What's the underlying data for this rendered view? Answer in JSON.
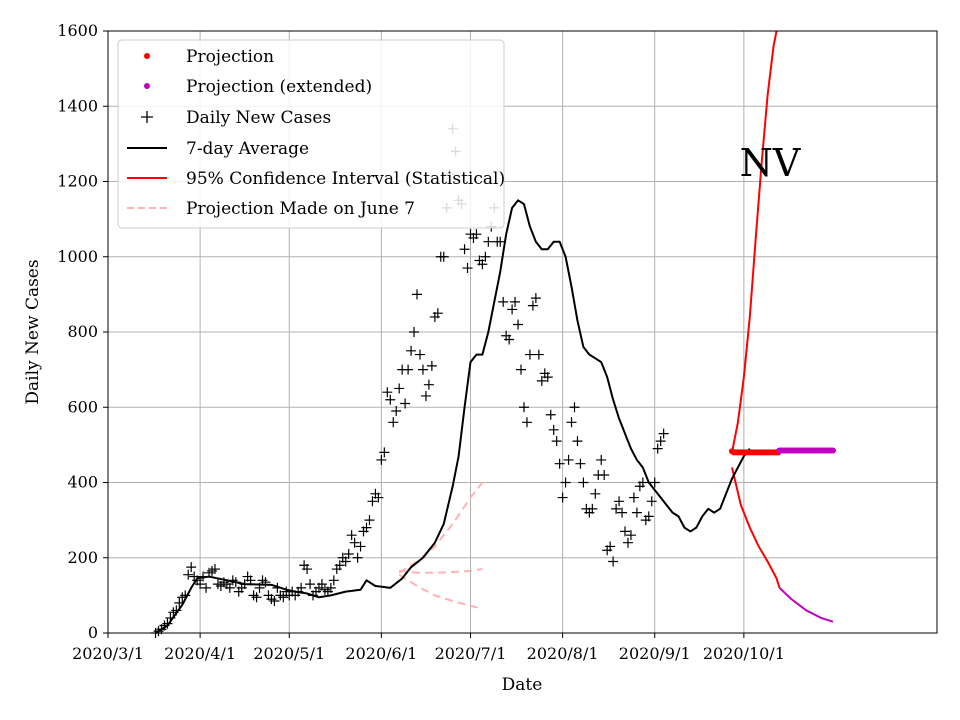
{
  "chart_data": {
    "type": "line",
    "title": "",
    "annotation": "NV",
    "xlabel": "Date",
    "ylabel": "Daily New Cases",
    "x_range_days": [
      0,
      279
    ],
    "ylim": [
      0,
      1600
    ],
    "grid": true,
    "legend_position": "top-left",
    "x_ticks": [
      {
        "day": 0,
        "label": "2020/3/1"
      },
      {
        "day": 31,
        "label": "2020/4/1"
      },
      {
        "day": 61,
        "label": "2020/5/1"
      },
      {
        "day": 92,
        "label": "2020/6/1"
      },
      {
        "day": 122,
        "label": "2020/7/1"
      },
      {
        "day": 153,
        "label": "2020/8/1"
      },
      {
        "day": 184,
        "label": "2020/9/1"
      },
      {
        "day": 214,
        "label": "2020/10/1"
      }
    ],
    "y_ticks": [
      {
        "value": 0,
        "label": "0"
      },
      {
        "value": 200,
        "label": "200"
      },
      {
        "value": 400,
        "label": "400"
      },
      {
        "value": 600,
        "label": "600"
      },
      {
        "value": 800,
        "label": "800"
      },
      {
        "value": 1000,
        "label": "1000"
      },
      {
        "value": 1200,
        "label": "1200"
      },
      {
        "value": 1400,
        "label": "1400"
      },
      {
        "value": 1600,
        "label": "1600"
      }
    ],
    "legend": [
      {
        "label": "Projection",
        "marker": "dot",
        "color": "#ff0000"
      },
      {
        "label": "Projection (extended)",
        "marker": "dot",
        "color": "#bf00bf"
      },
      {
        "label": "Daily New Cases",
        "marker": "plus",
        "color": "#000000"
      },
      {
        "label": "7-day Average",
        "marker": "line",
        "color": "#000000"
      },
      {
        "label": "95% Confidence Interval (Statistical)",
        "marker": "line",
        "color": "#ff0000"
      },
      {
        "label": "Projection Made on June 7",
        "marker": "dashed",
        "color": "#ffb3b3"
      }
    ],
    "daily_new_cases": {
      "start_day": 16,
      "values": [
        0,
        5,
        10,
        20,
        25,
        40,
        55,
        60,
        80,
        95,
        100,
        155,
        175,
        150,
        140,
        130,
        150,
        120,
        160,
        165,
        170,
        130,
        125,
        135,
        130,
        120,
        140,
        135,
        110,
        120,
        130,
        150,
        140,
        100,
        95,
        120,
        140,
        135,
        100,
        90,
        85,
        120,
        100,
        95,
        110,
        100,
        110,
        100,
        110,
        120,
        180,
        170,
        130,
        100,
        110,
        120,
        130,
        115,
        110,
        120,
        140,
        170,
        180,
        200,
        190,
        210,
        260,
        240,
        200,
        230,
        270,
        280,
        300,
        350,
        370,
        360,
        460,
        480,
        640,
        620,
        560,
        590,
        650,
        700,
        610,
        700,
        750,
        800,
        900,
        740,
        700,
        630,
        660,
        710,
        840,
        850,
        1000,
        1000,
        1130,
        1220,
        1340,
        1280,
        1150,
        1140,
        1020,
        970,
        1060,
        1050,
        1060,
        990,
        980,
        1000,
        1040,
        1080,
        1130,
        1040,
        1040,
        880,
        790,
        780,
        860,
        880,
        820,
        700,
        600,
        560,
        740,
        870,
        890,
        740,
        670,
        690,
        680,
        580,
        540,
        510,
        450,
        360,
        400,
        460,
        560,
        600,
        510,
        450,
        400,
        330,
        320,
        330,
        370,
        420,
        460,
        420,
        220,
        230,
        190,
        330,
        350,
        320,
        270,
        240,
        260,
        360,
        320,
        390,
        400,
        300,
        310,
        350,
        400,
        490,
        510,
        530
      ]
    },
    "seven_day_average": [
      [
        16,
        0
      ],
      [
        20,
        20
      ],
      [
        25,
        75
      ],
      [
        28,
        120
      ],
      [
        30,
        145
      ],
      [
        34,
        150
      ],
      [
        40,
        140
      ],
      [
        46,
        130
      ],
      [
        55,
        128
      ],
      [
        60,
        115
      ],
      [
        63,
        110
      ],
      [
        67,
        105
      ],
      [
        71,
        95
      ],
      [
        75,
        100
      ],
      [
        80,
        110
      ],
      [
        85,
        115
      ],
      [
        87,
        140
      ],
      [
        90,
        125
      ],
      [
        95,
        120
      ],
      [
        99,
        145
      ],
      [
        102,
        175
      ],
      [
        106,
        200
      ],
      [
        110,
        240
      ],
      [
        113,
        290
      ],
      [
        116,
        390
      ],
      [
        118,
        470
      ],
      [
        120,
        600
      ],
      [
        122,
        720
      ],
      [
        124,
        740
      ],
      [
        126,
        740
      ],
      [
        128,
        800
      ],
      [
        130,
        880
      ],
      [
        132,
        960
      ],
      [
        134,
        1060
      ],
      [
        136,
        1130
      ],
      [
        138,
        1150
      ],
      [
        140,
        1140
      ],
      [
        142,
        1080
      ],
      [
        144,
        1040
      ],
      [
        146,
        1020
      ],
      [
        148,
        1020
      ],
      [
        150,
        1040
      ],
      [
        152,
        1040
      ],
      [
        154,
        1000
      ],
      [
        156,
        920
      ],
      [
        158,
        830
      ],
      [
        160,
        760
      ],
      [
        162,
        740
      ],
      [
        164,
        730
      ],
      [
        166,
        720
      ],
      [
        168,
        680
      ],
      [
        170,
        620
      ],
      [
        172,
        570
      ],
      [
        174,
        530
      ],
      [
        176,
        490
      ],
      [
        178,
        460
      ],
      [
        180,
        440
      ],
      [
        182,
        400
      ],
      [
        184,
        380
      ],
      [
        186,
        360
      ],
      [
        188,
        340
      ],
      [
        190,
        320
      ],
      [
        192,
        310
      ],
      [
        194,
        280
      ],
      [
        196,
        270
      ],
      [
        198,
        280
      ],
      [
        200,
        310
      ],
      [
        202,
        330
      ],
      [
        204,
        320
      ],
      [
        206,
        330
      ],
      [
        208,
        370
      ],
      [
        210,
        410
      ],
      [
        212,
        440
      ],
      [
        214,
        470
      ],
      [
        216,
        490
      ]
    ],
    "projection": {
      "start_day": 210,
      "end_day": 226,
      "value": 480
    },
    "projection_extended": {
      "start_day": 226,
      "end_day": 244,
      "value": 485
    },
    "confidence_interval": {
      "upper": [
        [
          210,
          480
        ],
        [
          212,
          560
        ],
        [
          214,
          680
        ],
        [
          216,
          840
        ],
        [
          218,
          1050
        ],
        [
          220,
          1250
        ],
        [
          222,
          1430
        ],
        [
          224,
          1560
        ],
        [
          225,
          1620
        ]
      ],
      "lower": [
        [
          210,
          440
        ],
        [
          213,
          340
        ],
        [
          216,
          280
        ],
        [
          219,
          230
        ],
        [
          222,
          190
        ],
        [
          225,
          145
        ],
        [
          226,
          120
        ]
      ],
      "lower_extended": [
        [
          226,
          120
        ],
        [
          230,
          90
        ],
        [
          235,
          60
        ],
        [
          240,
          40
        ],
        [
          244,
          30
        ]
      ]
    },
    "projection_made_june_7": {
      "upper": [
        [
          98,
          160
        ],
        [
          104,
          190
        ],
        [
          110,
          230
        ],
        [
          116,
          290
        ],
        [
          122,
          360
        ],
        [
          126,
          400
        ]
      ],
      "middle": [
        [
          98,
          165
        ],
        [
          104,
          160
        ],
        [
          110,
          160
        ],
        [
          116,
          162
        ],
        [
          122,
          165
        ],
        [
          126,
          170
        ]
      ],
      "lower": [
        [
          98,
          155
        ],
        [
          104,
          125
        ],
        [
          110,
          100
        ],
        [
          116,
          85
        ],
        [
          122,
          72
        ],
        [
          126,
          65
        ]
      ]
    }
  }
}
